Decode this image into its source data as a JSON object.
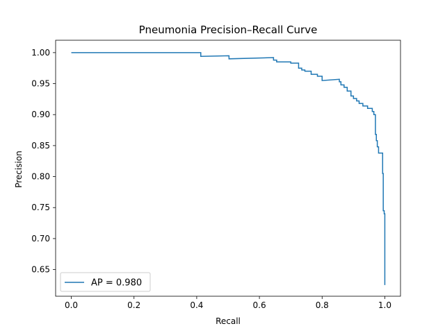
{
  "chart_data": {
    "type": "line",
    "title": "Pneumonia Precision–Recall Curve",
    "xlabel": "Recall",
    "ylabel": "Precision",
    "xlim": [
      -0.05,
      1.05
    ],
    "ylim": [
      0.607,
      1.02
    ],
    "xticks": [
      0.0,
      0.2,
      0.4,
      0.6,
      0.8,
      1.0
    ],
    "xtick_labels": [
      "0.0",
      "0.2",
      "0.4",
      "0.6",
      "0.8",
      "1.0"
    ],
    "yticks": [
      0.65,
      0.7,
      0.75,
      0.8,
      0.85,
      0.9,
      0.95,
      1.0
    ],
    "ytick_labels": [
      "0.65",
      "0.70",
      "0.75",
      "0.80",
      "0.85",
      "0.90",
      "0.95",
      "1.00"
    ],
    "grid": false,
    "legend_position": "lower-left",
    "series": [
      {
        "name": "AP = 0.980",
        "color": "#1f77b4",
        "x": [
          0.0,
          0.413,
          0.413,
          0.503,
          0.503,
          0.645,
          0.645,
          0.655,
          0.655,
          0.7,
          0.7,
          0.725,
          0.725,
          0.735,
          0.735,
          0.745,
          0.745,
          0.765,
          0.765,
          0.785,
          0.785,
          0.8,
          0.8,
          0.855,
          0.855,
          0.86,
          0.86,
          0.87,
          0.87,
          0.88,
          0.88,
          0.892,
          0.892,
          0.9,
          0.9,
          0.91,
          0.91,
          0.918,
          0.918,
          0.93,
          0.93,
          0.945,
          0.945,
          0.96,
          0.96,
          0.965,
          0.965,
          0.97,
          0.97,
          0.973,
          0.973,
          0.976,
          0.976,
          0.98,
          0.98,
          0.993,
          0.993,
          0.995,
          0.995,
          0.998,
          0.998,
          1.0,
          1.0
        ],
        "y": [
          1.0,
          1.0,
          0.994,
          0.995,
          0.99,
          0.992,
          0.988,
          0.988,
          0.985,
          0.985,
          0.983,
          0.983,
          0.975,
          0.975,
          0.972,
          0.972,
          0.97,
          0.97,
          0.965,
          0.965,
          0.962,
          0.962,
          0.955,
          0.957,
          0.953,
          0.953,
          0.948,
          0.948,
          0.944,
          0.944,
          0.938,
          0.938,
          0.93,
          0.93,
          0.926,
          0.926,
          0.922,
          0.922,
          0.918,
          0.918,
          0.914,
          0.914,
          0.91,
          0.91,
          0.905,
          0.905,
          0.9,
          0.9,
          0.868,
          0.868,
          0.858,
          0.858,
          0.848,
          0.848,
          0.838,
          0.838,
          0.805,
          0.805,
          0.745,
          0.745,
          0.74,
          0.74,
          0.625
        ]
      }
    ]
  }
}
